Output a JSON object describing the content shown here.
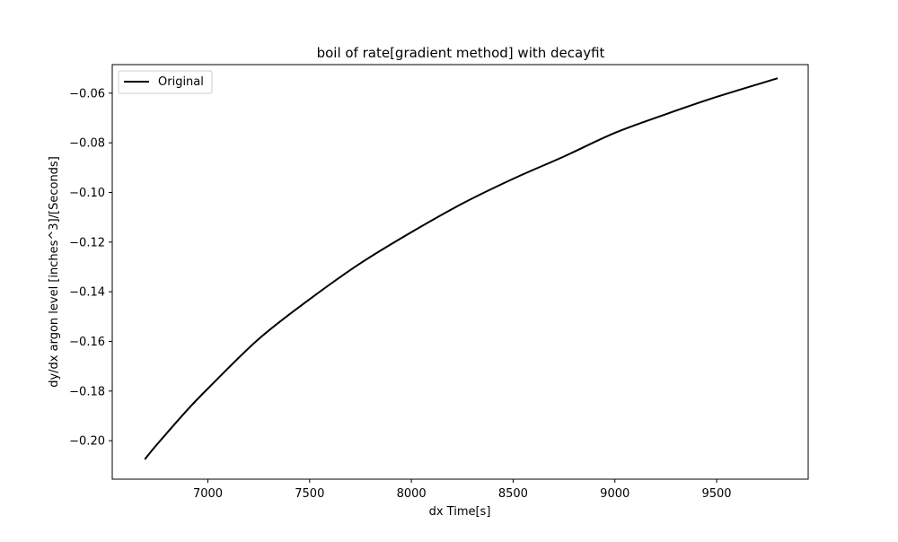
{
  "chart_data": {
    "type": "line",
    "title": "boil of rate[gradient method] with decayfit",
    "xlabel": "dx Time[s]",
    "ylabel": "dy/dx argon level [inches^3]/[Seconds]",
    "xlim": [
      6530,
      9950
    ],
    "ylim": [
      -0.2155,
      -0.0485
    ],
    "xticks": [
      7000,
      7500,
      8000,
      8500,
      9000,
      9500
    ],
    "xtick_labels": [
      "7000",
      "7500",
      "8000",
      "8500",
      "9000",
      "9500"
    ],
    "yticks": [
      -0.2,
      -0.18,
      -0.16,
      -0.14,
      -0.12,
      -0.1,
      -0.08,
      -0.06
    ],
    "ytick_labels": [
      "−0.20",
      "−0.18",
      "−0.16",
      "−0.14",
      "−0.12",
      "−0.10",
      "−0.08",
      "−0.06"
    ],
    "grid": false,
    "legend_position": "top-left",
    "series": [
      {
        "name": "Original",
        "color": "#000000",
        "x": [
          6690,
          6750,
          6900,
          7000,
          7250,
          7500,
          7750,
          8000,
          8250,
          8500,
          8750,
          9000,
          9250,
          9500,
          9800
        ],
        "y": [
          -0.2075,
          -0.2015,
          -0.1875,
          -0.179,
          -0.159,
          -0.143,
          -0.1285,
          -0.116,
          -0.1045,
          -0.0945,
          -0.0855,
          -0.076,
          -0.0685,
          -0.0615,
          -0.054
        ]
      }
    ]
  }
}
